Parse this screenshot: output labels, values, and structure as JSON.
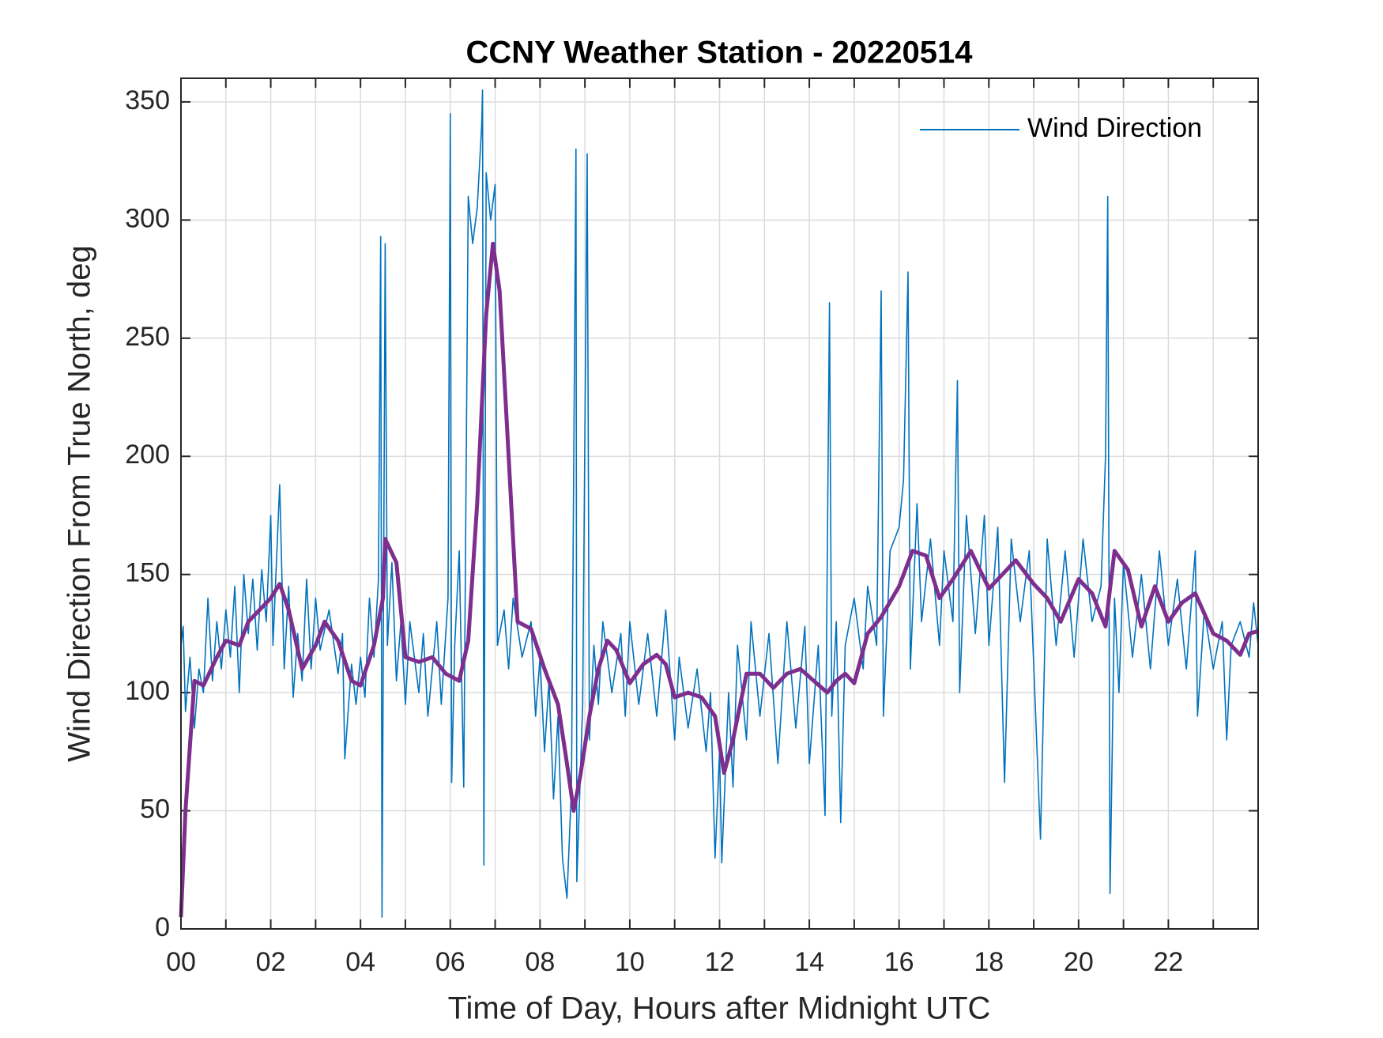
{
  "chart_data": {
    "type": "line",
    "title": "CCNY Weather Station - 20220514",
    "xlabel": "Time of Day, Hours after Midnight UTC",
    "ylabel": "Wind Direction From True North, deg",
    "xlim": [
      0,
      24
    ],
    "ylim": [
      0,
      360
    ],
    "xticks": [
      {
        "value": 0,
        "label": "00"
      },
      {
        "value": 2,
        "label": "02"
      },
      {
        "value": 4,
        "label": "04"
      },
      {
        "value": 6,
        "label": "06"
      },
      {
        "value": 8,
        "label": "08"
      },
      10,
      12,
      14,
      16,
      18,
      20,
      22
    ],
    "xminorticks": [
      1,
      3,
      5,
      7,
      9,
      11,
      13,
      15,
      17,
      19,
      21,
      23
    ],
    "yticks": [
      0,
      50,
      100,
      150,
      200,
      250,
      300,
      350
    ],
    "grid": true,
    "legend": "northeast",
    "series": [
      {
        "name": "Wind Direction",
        "color": "#0072bd",
        "x": [
          0,
          0.05,
          0.1,
          0.2,
          0.3,
          0.4,
          0.5,
          0.6,
          0.7,
          0.8,
          0.9,
          1.0,
          1.1,
          1.2,
          1.3,
          1.4,
          1.5,
          1.6,
          1.7,
          1.8,
          1.9,
          2.0,
          2.05,
          2.2,
          2.3,
          2.4,
          2.5,
          2.6,
          2.7,
          2.8,
          2.9,
          3.0,
          3.1,
          3.3,
          3.5,
          3.6,
          3.65,
          3.8,
          3.9,
          4.0,
          4.1,
          4.2,
          4.3,
          4.4,
          4.45,
          4.48,
          4.55,
          4.6,
          4.7,
          4.8,
          4.9,
          5.0,
          5.1,
          5.3,
          5.4,
          5.5,
          5.7,
          5.8,
          5.95,
          6.0,
          6.03,
          6.1,
          6.2,
          6.3,
          6.4,
          6.5,
          6.6,
          6.7,
          6.72,
          6.75,
          6.8,
          6.9,
          7.0,
          7.05,
          7.2,
          7.3,
          7.4,
          7.6,
          7.8,
          7.9,
          8.0,
          8.1,
          8.2,
          8.3,
          8.4,
          8.5,
          8.6,
          8.7,
          8.8,
          8.82,
          8.95,
          9.05,
          9.1,
          9.2,
          9.3,
          9.4,
          9.6,
          9.8,
          9.9,
          10.0,
          10.2,
          10.4,
          10.6,
          10.8,
          11.0,
          11.1,
          11.3,
          11.5,
          11.7,
          11.8,
          11.9,
          12.0,
          12.05,
          12.2,
          12.3,
          12.4,
          12.6,
          12.7,
          12.9,
          13.1,
          13.3,
          13.5,
          13.7,
          13.9,
          14.0,
          14.2,
          14.35,
          14.45,
          14.5,
          14.6,
          14.7,
          14.8,
          15.0,
          15.2,
          15.3,
          15.5,
          15.6,
          15.65,
          15.8,
          16.0,
          16.1,
          16.2,
          16.25,
          16.4,
          16.5,
          16.7,
          16.9,
          17.0,
          17.2,
          17.3,
          17.35,
          17.5,
          17.7,
          17.9,
          18.0,
          18.2,
          18.35,
          18.5,
          18.7,
          18.9,
          19.15,
          19.3,
          19.5,
          19.7,
          19.9,
          20.1,
          20.3,
          20.5,
          20.6,
          20.65,
          20.7,
          20.8,
          20.9,
          21.0,
          21.2,
          21.4,
          21.6,
          21.8,
          22.0,
          22.2,
          22.4,
          22.6,
          22.65,
          22.8,
          23.0,
          23.2,
          23.3,
          23.4,
          23.6,
          23.8,
          23.9,
          24.0
        ],
        "values": [
          120,
          128,
          92,
          115,
          85,
          110,
          100,
          140,
          105,
          130,
          110,
          135,
          115,
          145,
          100,
          150,
          125,
          148,
          118,
          152,
          130,
          175,
          120,
          188,
          110,
          145,
          98,
          125,
          105,
          148,
          110,
          140,
          118,
          135,
          108,
          125,
          72,
          112,
          95,
          115,
          98,
          140,
          115,
          148,
          293,
          5,
          290,
          120,
          155,
          105,
          130,
          95,
          130,
          100,
          125,
          90,
          130,
          95,
          140,
          345,
          62,
          120,
          160,
          60,
          310,
          290,
          305,
          340,
          355,
          27,
          320,
          300,
          315,
          120,
          135,
          110,
          140,
          115,
          130,
          90,
          115,
          75,
          105,
          55,
          90,
          30,
          13,
          60,
          330,
          20,
          95,
          328,
          80,
          120,
          95,
          130,
          100,
          125,
          90,
          130,
          95,
          125,
          90,
          135,
          80,
          115,
          85,
          110,
          75,
          100,
          30,
          75,
          28,
          100,
          60,
          120,
          80,
          130,
          90,
          125,
          70,
          130,
          85,
          128,
          70,
          120,
          48,
          265,
          90,
          130,
          45,
          120,
          140,
          110,
          145,
          120,
          270,
          90,
          160,
          170,
          190,
          278,
          110,
          180,
          130,
          165,
          120,
          160,
          130,
          232,
          100,
          175,
          125,
          175,
          120,
          170,
          62,
          165,
          130,
          160,
          38,
          165,
          120,
          160,
          115,
          165,
          130,
          145,
          200,
          310,
          15,
          140,
          100,
          155,
          115,
          150,
          110,
          160,
          120,
          148,
          110,
          160,
          90,
          135,
          110,
          130,
          80,
          120,
          130,
          115,
          138,
          120
        ]
      },
      {
        "color": "#7e2f8e",
        "x": [
          0,
          0.1,
          0.3,
          0.5,
          0.8,
          1.0,
          1.3,
          1.5,
          2.0,
          2.2,
          2.4,
          2.7,
          3.0,
          3.2,
          3.5,
          3.8,
          4.0,
          4.3,
          4.5,
          4.55,
          4.8,
          5.0,
          5.3,
          5.6,
          5.9,
          6.2,
          6.4,
          6.6,
          6.8,
          6.95,
          7.1,
          7.3,
          7.5,
          7.8,
          8.1,
          8.4,
          8.6,
          8.75,
          8.9,
          9.1,
          9.3,
          9.5,
          9.7,
          10.0,
          10.3,
          10.6,
          10.8,
          11.0,
          11.3,
          11.6,
          11.9,
          12.1,
          12.3,
          12.6,
          12.9,
          13.2,
          13.5,
          13.8,
          14.1,
          14.4,
          14.6,
          14.8,
          15.0,
          15.3,
          15.6,
          16.0,
          16.3,
          16.6,
          16.9,
          17.2,
          17.6,
          18.0,
          18.3,
          18.6,
          19.0,
          19.3,
          19.6,
          20.0,
          20.3,
          20.6,
          20.8,
          21.1,
          21.4,
          21.7,
          22.0,
          22.3,
          22.6,
          23.0,
          23.3,
          23.6,
          23.8,
          24.0
        ],
        "values": [
          5,
          50,
          105,
          103,
          115,
          122,
          120,
          130,
          140,
          146,
          135,
          110,
          120,
          130,
          122,
          105,
          103,
          120,
          140,
          165,
          155,
          115,
          113,
          115,
          108,
          105,
          122,
          180,
          260,
          290,
          270,
          200,
          130,
          127,
          110,
          95,
          70,
          50,
          65,
          90,
          110,
          122,
          118,
          104,
          112,
          116,
          112,
          98,
          100,
          98,
          90,
          66,
          80,
          108,
          108,
          102,
          108,
          110,
          105,
          100,
          105,
          108,
          104,
          125,
          132,
          145,
          160,
          158,
          140,
          148,
          160,
          144,
          150,
          156,
          146,
          140,
          130,
          148,
          142,
          128,
          160,
          152,
          128,
          145,
          130,
          138,
          142,
          125,
          122,
          116,
          125,
          126
        ]
      }
    ]
  }
}
